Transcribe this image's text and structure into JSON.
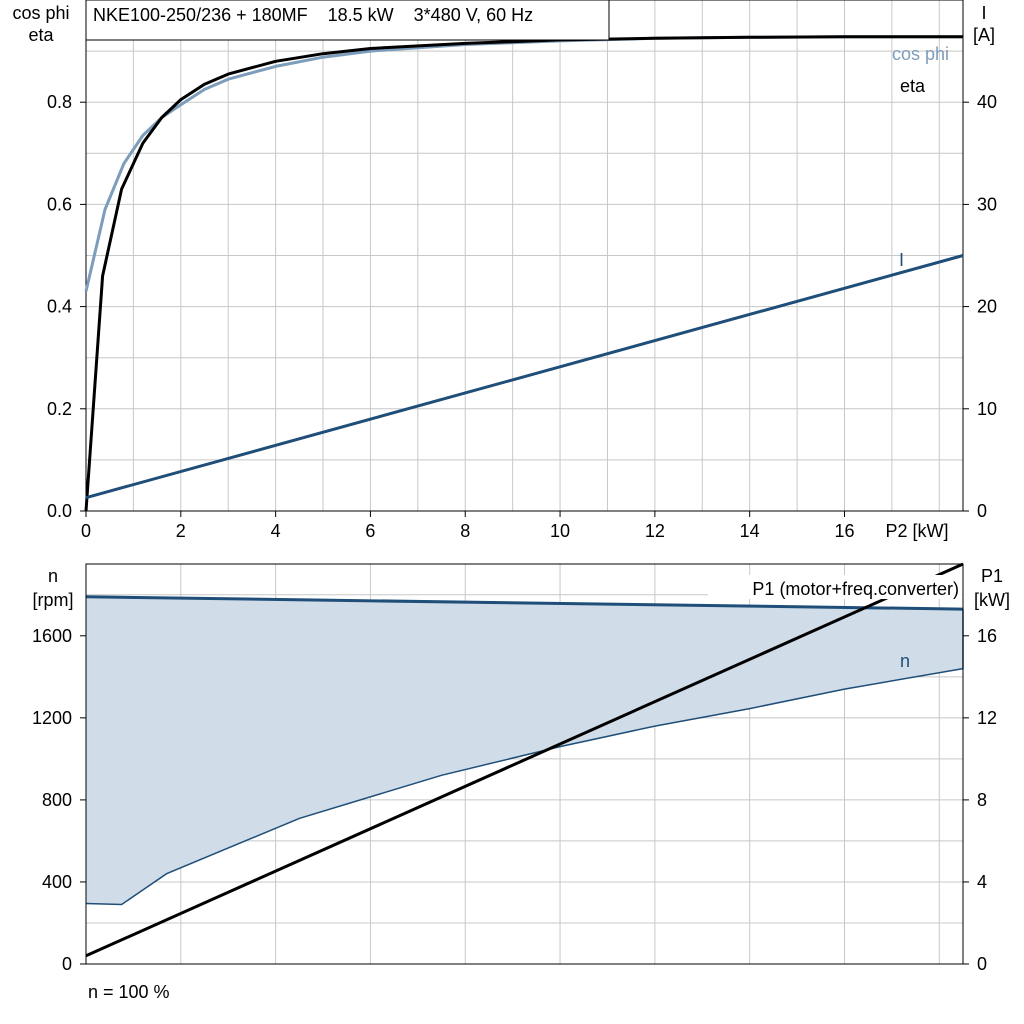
{
  "chart_data": [
    {
      "type": "line",
      "title": "NKE100-250/236 + 180MF    18.5 kW    3*480 V, 60 Hz",
      "left_axis_label": [
        "cos phi",
        "eta"
      ],
      "right_axis_label": [
        "I",
        "[A]"
      ],
      "xlabel": "P2 [kW]",
      "xlim": [
        0,
        18.5
      ],
      "x_ticks": [
        "0",
        "2",
        "4",
        "6",
        "8",
        "10",
        "12",
        "14",
        "16"
      ],
      "y_left_lim": [
        0,
        1.0
      ],
      "y_left_ticks": [
        "0.0",
        "0.2",
        "0.4",
        "0.6",
        "0.8"
      ],
      "y_right_lim": [
        0,
        50
      ],
      "y_right_ticks": [
        "0",
        "10",
        "20",
        "30",
        "40"
      ],
      "grid": true,
      "series": [
        {
          "name": "cos phi",
          "axis": "left",
          "color": "#7c9dbb",
          "x": [
            0,
            0.4,
            0.8,
            1.2,
            1.6,
            2,
            2.5,
            3,
            4,
            5,
            6,
            8,
            10,
            12,
            14,
            16,
            18.5
          ],
          "y": [
            0.43,
            0.59,
            0.68,
            0.735,
            0.77,
            0.795,
            0.825,
            0.845,
            0.87,
            0.888,
            0.9,
            0.913,
            0.92,
            0.925,
            0.927,
            0.928,
            0.928
          ]
        },
        {
          "name": "eta",
          "axis": "left",
          "color": "#000000",
          "x": [
            0,
            0.35,
            0.75,
            1.2,
            1.6,
            2,
            2.5,
            3,
            4,
            5,
            6,
            8,
            10,
            12,
            14,
            16,
            18.5
          ],
          "y": [
            0.0,
            0.46,
            0.63,
            0.72,
            0.77,
            0.805,
            0.835,
            0.855,
            0.88,
            0.895,
            0.905,
            0.915,
            0.922,
            0.925,
            0.927,
            0.928,
            0.928
          ]
        },
        {
          "name": "I",
          "axis": "right",
          "color": "#1f4e79",
          "x": [
            0,
            18.5
          ],
          "y": [
            1.3,
            25.0
          ]
        }
      ]
    },
    {
      "type": "area",
      "left_axis_label": [
        "n",
        "[rpm]"
      ],
      "right_axis_label": [
        "P1",
        "[kW]"
      ],
      "footer": "n = 100 %",
      "xlim": [
        0,
        18.5
      ],
      "y_left_lim": [
        0,
        1950
      ],
      "y_left_ticks": [
        "0",
        "400",
        "800",
        "1200",
        "1600"
      ],
      "y_right_lim": [
        0,
        19.5
      ],
      "y_right_ticks": [
        "0",
        "4",
        "8",
        "12",
        "16"
      ],
      "grid": true,
      "series": [
        {
          "name": "n",
          "axis": "left",
          "color": "#1f4e79",
          "fill": "#d0dce8",
          "x_upper": [
            0,
            18.5
          ],
          "y_upper": [
            1790,
            1730
          ],
          "x_lower": [
            0,
            0.75,
            1.7,
            4.5,
            7.5,
            10,
            12,
            14,
            16,
            18.5
          ],
          "y_lower": [
            295,
            290,
            440,
            710,
            920,
            1060,
            1160,
            1245,
            1340,
            1440
          ]
        },
        {
          "name": "P1 (motor+freq.converter)",
          "axis": "right",
          "color": "#000000",
          "x": [
            0,
            18.5
          ],
          "y": [
            0.4,
            19.5
          ]
        }
      ]
    }
  ]
}
